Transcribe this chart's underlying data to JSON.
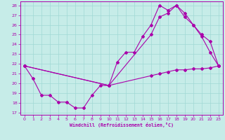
{
  "xlabel": "Windchill (Refroidissement éolien,°C)",
  "xlim": [
    -0.5,
    23.5
  ],
  "ylim": [
    16.8,
    28.4
  ],
  "yticks": [
    17,
    18,
    19,
    20,
    21,
    22,
    23,
    24,
    25,
    26,
    27,
    28
  ],
  "xticks": [
    0,
    1,
    2,
    3,
    4,
    5,
    6,
    7,
    8,
    9,
    10,
    11,
    12,
    13,
    14,
    15,
    16,
    17,
    18,
    19,
    20,
    21,
    22,
    23
  ],
  "background_color": "#c6ece8",
  "grid_color": "#a0d8d4",
  "line_color": "#aa00aa",
  "line1_x": [
    0,
    1,
    2,
    3,
    4,
    5,
    6,
    7,
    8,
    9,
    10,
    11,
    12,
    13,
    14,
    15,
    16,
    17,
    18,
    19,
    20,
    21,
    22,
    23
  ],
  "line1_y": [
    21.8,
    20.5,
    18.8,
    18.8,
    18.1,
    18.1,
    17.5,
    17.5,
    18.8,
    19.8,
    19.8,
    22.2,
    23.2,
    23.2,
    24.8,
    26.0,
    28.0,
    27.5,
    28.0,
    26.8,
    26.0,
    24.8,
    23.2,
    21.8
  ],
  "line2_x": [
    0,
    10,
    15,
    16,
    17,
    18,
    19,
    20,
    21,
    22,
    23
  ],
  "line2_y": [
    21.8,
    19.8,
    25.0,
    26.8,
    27.2,
    28.0,
    27.2,
    26.0,
    25.0,
    24.3,
    21.8
  ],
  "line3_x": [
    0,
    10,
    15,
    16,
    17,
    18,
    19,
    20,
    21,
    22,
    23
  ],
  "line3_y": [
    21.8,
    19.8,
    20.8,
    21.0,
    21.2,
    21.4,
    21.4,
    21.5,
    21.5,
    21.6,
    21.8
  ],
  "markersize": 2.0,
  "linewidth": 0.8
}
